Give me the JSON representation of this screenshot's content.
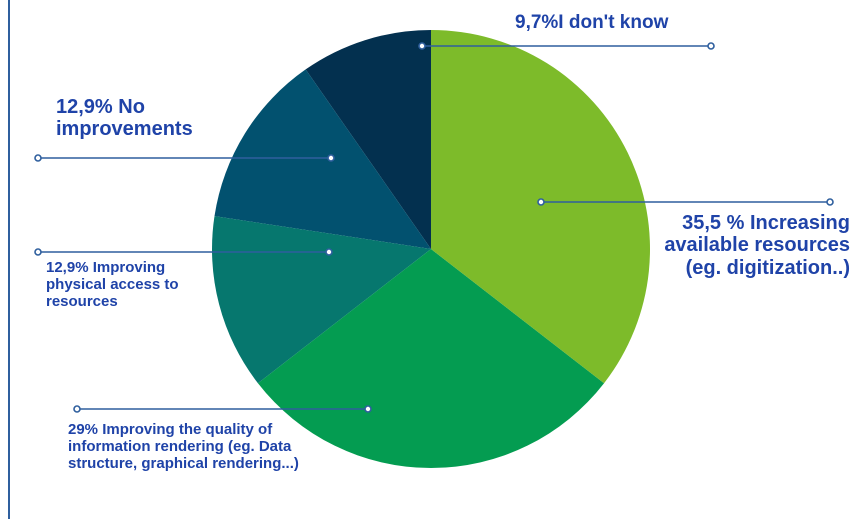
{
  "chart_data": {
    "type": "pie",
    "title": "",
    "slices": [
      {
        "label": "9,7%I don't know",
        "value": 9.7,
        "color": "#03304f"
      },
      {
        "label": "12,9% No improvements",
        "value": 12.9,
        "color": "#02516f"
      },
      {
        "label": "12,9% Improving physical access to resources",
        "value": 12.9,
        "color": "#06776e"
      },
      {
        "label": "29% Improving the quality of information rendering (eg. Data structure, graphical rendering...)",
        "value": 29,
        "color": "#049c51"
      },
      {
        "label": "35,5 % Increasing available resources (eg. digitization..)",
        "value": 35.5,
        "color": "#7dbb2a"
      }
    ],
    "slice_order": "counterclockwise from 12 o'clock",
    "legend": "none",
    "label_color": "#1f43a8",
    "leader_line_color": "#2f5f9e"
  }
}
